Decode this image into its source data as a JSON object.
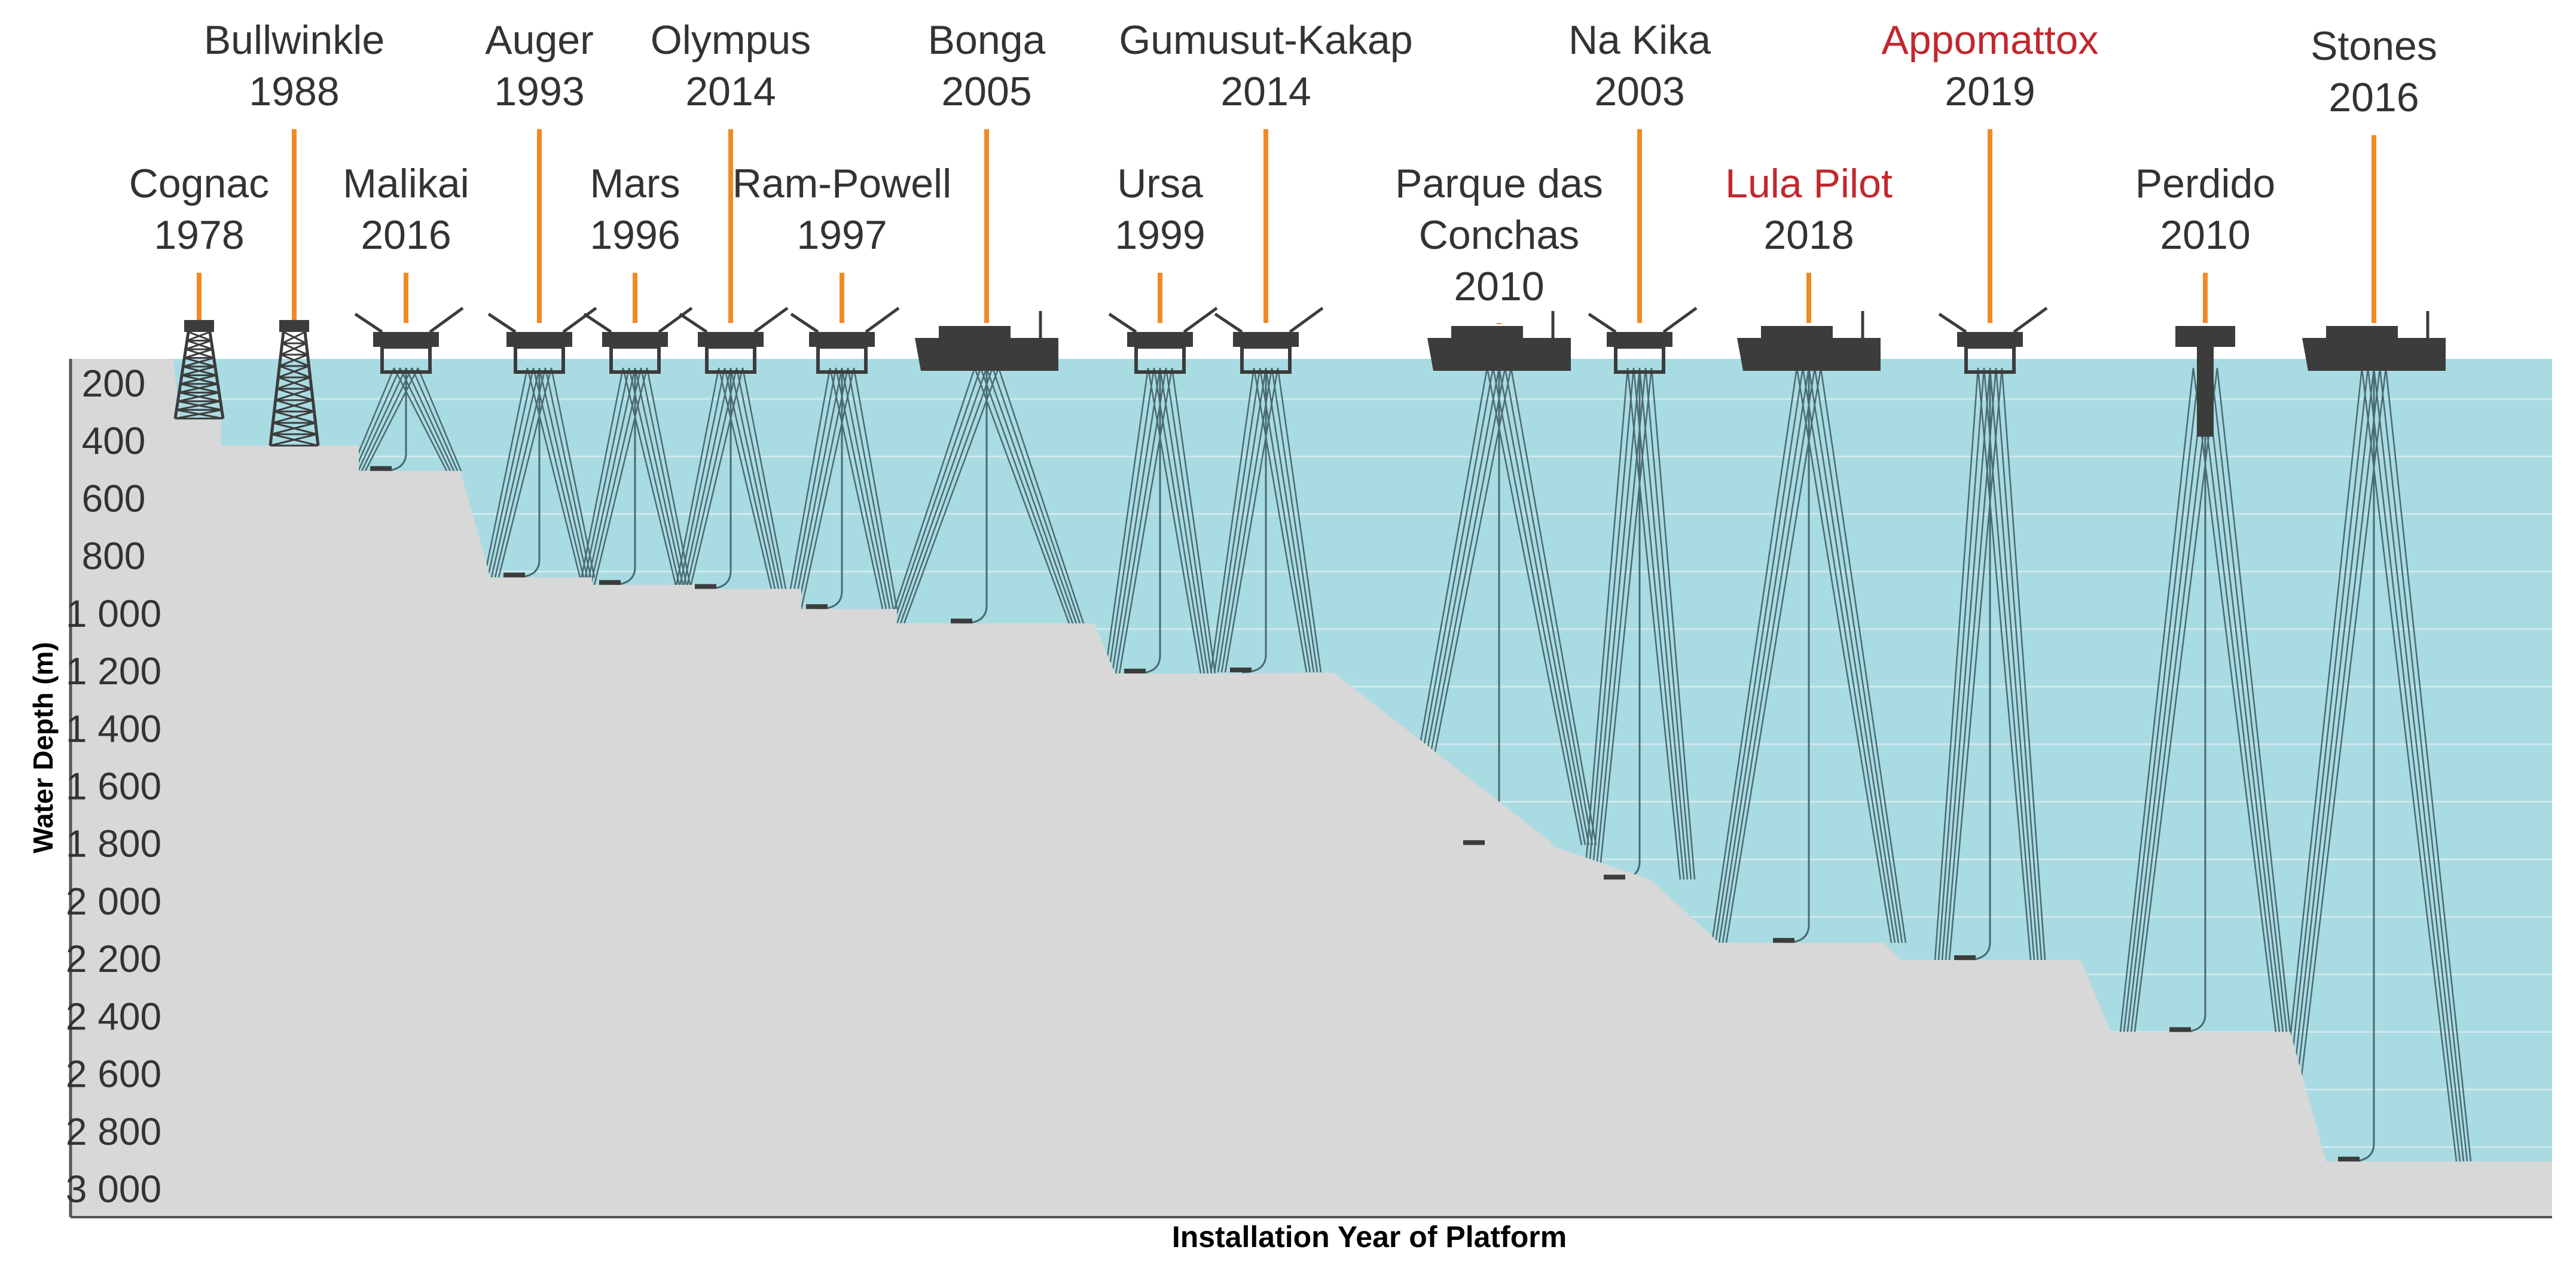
{
  "title_y_axis": "Water Depth (m)",
  "title_x_axis": "Installation Year of Platform",
  "colors": {
    "water": "#a9dbe2",
    "seabed": "#d8d8d8",
    "platform": "#3c3c3c",
    "marker": "#f08a24",
    "highlight_text": "#c0282d",
    "label_text": "#333333",
    "gridline": "#cfe9ed",
    "mooring": "#4a6a70",
    "axis": "#555555"
  },
  "y_axis": {
    "min": 0,
    "max": 3000,
    "ticks": [
      "200",
      "400",
      "600",
      "800",
      "1 000",
      "1 200",
      "1 400",
      "1 600",
      "1 800",
      "2 000",
      "2 200",
      "2 400",
      "2 600",
      "2 800",
      "3 000"
    ],
    "tick_values": [
      200,
      400,
      600,
      800,
      1000,
      1200,
      1400,
      1600,
      1800,
      2000,
      2200,
      2400,
      2600,
      2800,
      3000
    ]
  },
  "platforms": [
    {
      "name": "Cognac",
      "year": "1978",
      "depth_m": 318,
      "type": "jacket",
      "highlight": false
    },
    {
      "name": "Bullwinkle",
      "year": "1988",
      "depth_m": 412,
      "type": "jacket",
      "highlight": false
    },
    {
      "name": "Malikai",
      "year": "2016",
      "depth_m": 500,
      "type": "tlp",
      "highlight": false
    },
    {
      "name": "Auger",
      "year": "1993",
      "depth_m": 870,
      "type": "tlp",
      "highlight": false
    },
    {
      "name": "Mars",
      "year": "1996",
      "depth_m": 896,
      "type": "tlp",
      "highlight": false
    },
    {
      "name": "Olympus",
      "year": "2014",
      "depth_m": 910,
      "type": "tlp",
      "highlight": false
    },
    {
      "name": "Ram-Powell",
      "year": "1997",
      "depth_m": 980,
      "type": "tlp",
      "highlight": false
    },
    {
      "name": "Bonga",
      "year": "2005",
      "depth_m": 1030,
      "type": "fpso",
      "highlight": false
    },
    {
      "name": "Ursa",
      "year": "1999",
      "depth_m": 1204,
      "type": "tlp",
      "highlight": false
    },
    {
      "name": "Gumusut-Kakap",
      "year": "2014",
      "depth_m": 1200,
      "type": "semi",
      "highlight": false
    },
    {
      "name": "Parque das Conchas",
      "year": "2010",
      "depth_m": 1800,
      "type": "fpso",
      "highlight": false
    },
    {
      "name": "Na Kika",
      "year": "2003",
      "depth_m": 1920,
      "type": "semi",
      "highlight": false
    },
    {
      "name": "Lula Pilot",
      "year": "2018",
      "depth_m": 2140,
      "type": "fpso",
      "highlight": true
    },
    {
      "name": "Appomattox",
      "year": "2019",
      "depth_m": 2200,
      "type": "semi",
      "highlight": true
    },
    {
      "name": "Perdido",
      "year": "2010",
      "depth_m": 2450,
      "type": "spar",
      "highlight": false
    },
    {
      "name": "Stones",
      "year": "2016",
      "depth_m": 2900,
      "type": "fpso",
      "highlight": false
    }
  ]
}
